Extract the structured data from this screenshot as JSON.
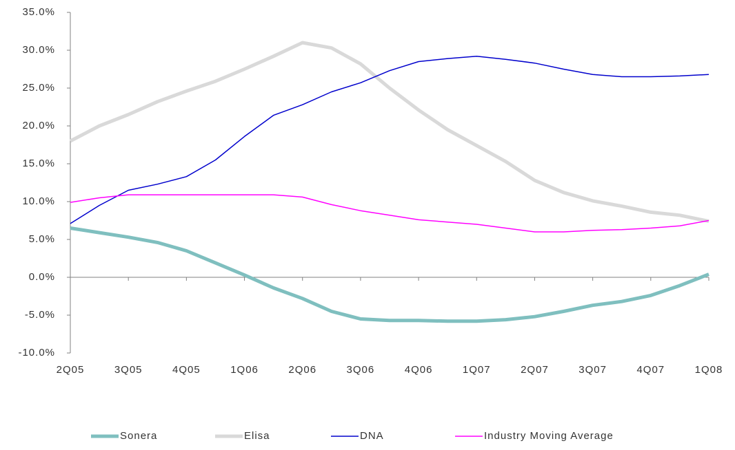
{
  "chart_data": {
    "type": "line",
    "categories": [
      "2Q05",
      null,
      "3Q05",
      null,
      "4Q05",
      null,
      "1Q06",
      null,
      "2Q06",
      null,
      "3Q06",
      null,
      "4Q06",
      null,
      "1Q07",
      null,
      "2Q07",
      null,
      "3Q07",
      null,
      "4Q07",
      null,
      "1Q08"
    ],
    "ylim": [
      -10,
      35
    ],
    "yticks": [
      {
        "value": -10,
        "label": "-10.0%"
      },
      {
        "value": -5,
        "label": "-5.0%"
      },
      {
        "value": 0,
        "label": "0.0%"
      },
      {
        "value": 5,
        "label": "5.0%"
      },
      {
        "value": 10,
        "label": "10.0%"
      },
      {
        "value": 15,
        "label": "15.0%"
      },
      {
        "value": 20,
        "label": "20.0%"
      },
      {
        "value": 25,
        "label": "25.0%"
      },
      {
        "value": 30,
        "label": "30.0%"
      },
      {
        "value": 35,
        "label": "35.0%"
      }
    ],
    "legend": "bottom",
    "series": [
      {
        "name": "Sonera",
        "color": "#7fbfbf",
        "values": [
          6.5,
          5.9,
          5.3,
          4.6,
          3.5,
          1.9,
          0.3,
          -1.4,
          -2.8,
          -4.5,
          -5.5,
          -5.7,
          -5.7,
          -5.8,
          -5.8,
          -5.6,
          -5.2,
          -4.5,
          -3.7,
          -3.2,
          -2.4,
          -1.1,
          0.4
        ]
      },
      {
        "name": "Elisa",
        "color": "#d9d9d9",
        "values": [
          18.0,
          20.0,
          21.5,
          23.2,
          24.6,
          25.9,
          27.5,
          29.2,
          31.0,
          30.3,
          28.2,
          25.0,
          22.1,
          19.5,
          17.4,
          15.3,
          12.8,
          11.2,
          10.1,
          9.4,
          8.6,
          8.2,
          7.4
        ]
      },
      {
        "name": "DNA",
        "color": "#0000cc",
        "values": [
          7.1,
          9.5,
          11.5,
          12.3,
          13.3,
          15.5,
          18.6,
          21.4,
          22.8,
          24.5,
          25.7,
          27.3,
          28.5,
          28.9,
          29.2,
          28.8,
          28.3,
          27.5,
          26.8,
          26.5,
          26.5,
          26.6,
          26.8
        ]
      },
      {
        "name": "Industry Moving Average",
        "color": "#ff00ff",
        "values": [
          9.9,
          10.5,
          10.9,
          10.9,
          10.9,
          10.9,
          10.9,
          10.9,
          10.6,
          9.6,
          8.8,
          8.2,
          7.6,
          7.3,
          7.0,
          6.5,
          6.0,
          6.0,
          6.2,
          6.3,
          6.5,
          6.8,
          7.5
        ]
      }
    ]
  }
}
